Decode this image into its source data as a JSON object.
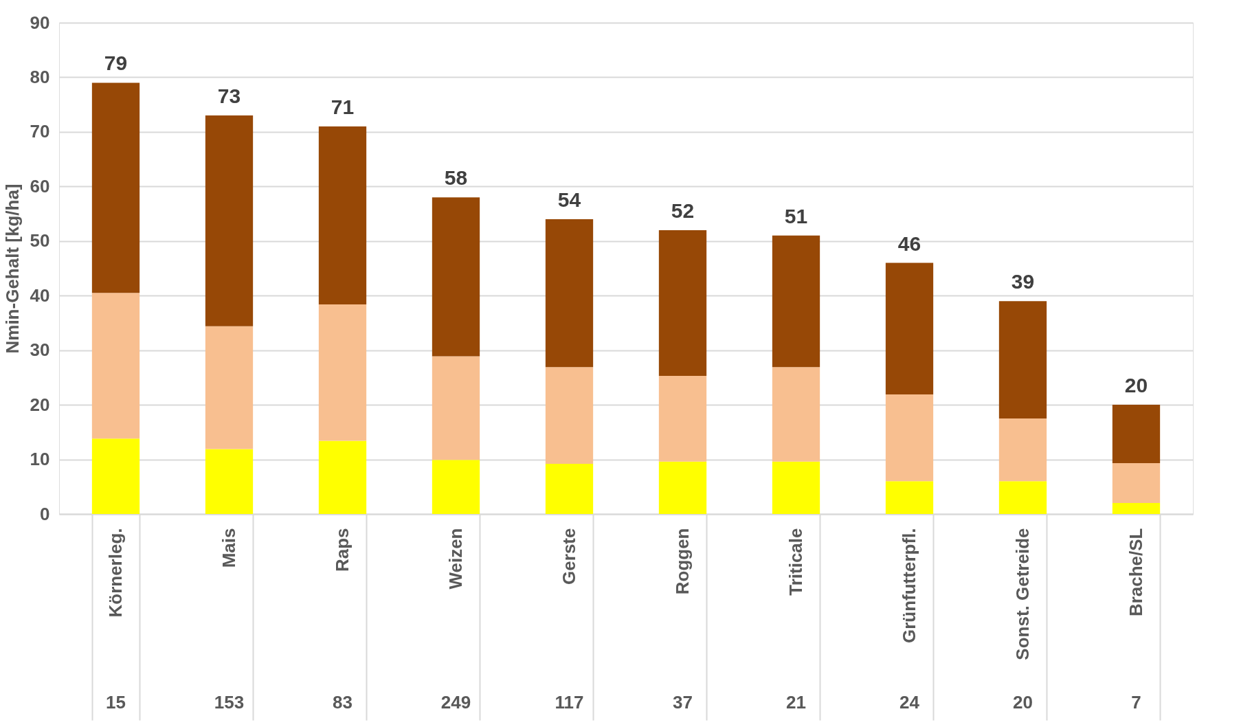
{
  "chart_data": {
    "type": "bar",
    "stacked": true,
    "ylabel": "Nmin-Gehalt [kg/ha]",
    "categories": [
      "Körnerleg.",
      "Mais",
      "Raps",
      "Weizen",
      "Gerste",
      "Roggen",
      "Triticale",
      "Grünfutterpfl.",
      "Sonst. Getreide",
      "Brache/SL"
    ],
    "series": [
      {
        "color": "#ffff00",
        "values": [
          13.8,
          11.9,
          13.4,
          9.9,
          9.2,
          9.6,
          9.6,
          6.0,
          6.0,
          2.0
        ]
      },
      {
        "color": "#f8bf90",
        "values": [
          26.7,
          22.5,
          25.0,
          19.0,
          17.7,
          15.7,
          17.3,
          15.9,
          11.5,
          7.3
        ]
      },
      {
        "color": "#974806",
        "values": [
          38.5,
          38.6,
          32.6,
          29.1,
          27.1,
          26.7,
          24.1,
          24.1,
          21.5,
          10.7
        ]
      }
    ],
    "totals": [
      "79",
      "73",
      "71",
      "58",
      "54",
      "52",
      "51",
      "46",
      "39",
      "20"
    ],
    "ylim": [
      0,
      90
    ],
    "yticks": [
      0,
      10,
      20,
      30,
      40,
      50,
      60,
      70,
      80,
      90
    ],
    "grid": "y",
    "annotations": [
      "15",
      "153",
      "83",
      "249",
      "117",
      "37",
      "21",
      "24",
      "20",
      "7"
    ]
  }
}
